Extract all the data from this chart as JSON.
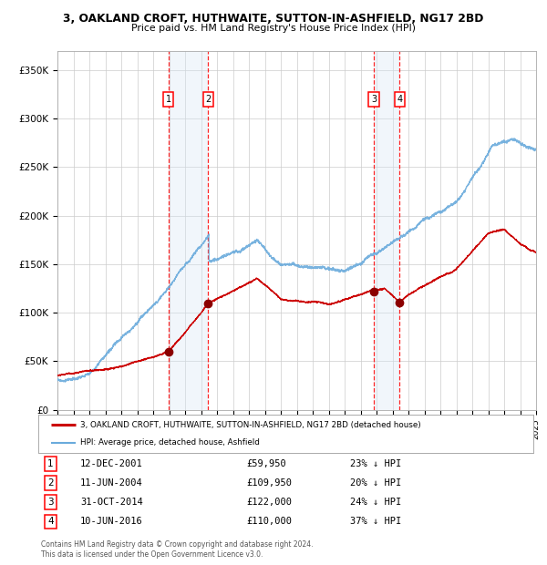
{
  "title": "3, OAKLAND CROFT, HUTHWAITE, SUTTON-IN-ASHFIELD, NG17 2BD",
  "subtitle": "Price paid vs. HM Land Registry's House Price Index (HPI)",
  "ylim": [
    0,
    370000
  ],
  "yticks": [
    0,
    50000,
    100000,
    150000,
    200000,
    250000,
    300000,
    350000
  ],
  "ytick_labels": [
    "£0",
    "£50K",
    "£100K",
    "£150K",
    "£200K",
    "£250K",
    "£300K",
    "£350K"
  ],
  "year_start": 1995,
  "year_end": 2025,
  "hpi_color": "#6aabdc",
  "price_color": "#cc0000",
  "sale_marker_color": "#8b0000",
  "background_color": "#ffffff",
  "grid_color": "#cccccc",
  "shading_color": "#d8e8f5",
  "transactions": [
    {
      "label": "1",
      "date": "12-DEC-2001",
      "date_num": 2001.95,
      "price": 59950,
      "pct": "23%"
    },
    {
      "label": "2",
      "date": "11-JUN-2004",
      "date_num": 2004.45,
      "price": 109950,
      "pct": "20%"
    },
    {
      "label": "3",
      "date": "31-OCT-2014",
      "date_num": 2014.83,
      "price": 122000,
      "pct": "24%"
    },
    {
      "label": "4",
      "date": "10-JUN-2016",
      "date_num": 2016.45,
      "price": 110000,
      "pct": "37%"
    }
  ],
  "legend_entries": [
    "3, OAKLAND CROFT, HUTHWAITE, SUTTON-IN-ASHFIELD, NG17 2BD (detached house)",
    "HPI: Average price, detached house, Ashfield"
  ],
  "table_rows": [
    [
      "1",
      "12-DEC-2001",
      "£59,950",
      "23% ↓ HPI"
    ],
    [
      "2",
      "11-JUN-2004",
      "£109,950",
      "20% ↓ HPI"
    ],
    [
      "3",
      "31-OCT-2014",
      "£122,000",
      "24% ↓ HPI"
    ],
    [
      "4",
      "10-JUN-2016",
      "£110,000",
      "37% ↓ HPI"
    ]
  ],
  "footnote": "Contains HM Land Registry data © Crown copyright and database right 2024.\nThis data is licensed under the Open Government Licence v3.0."
}
